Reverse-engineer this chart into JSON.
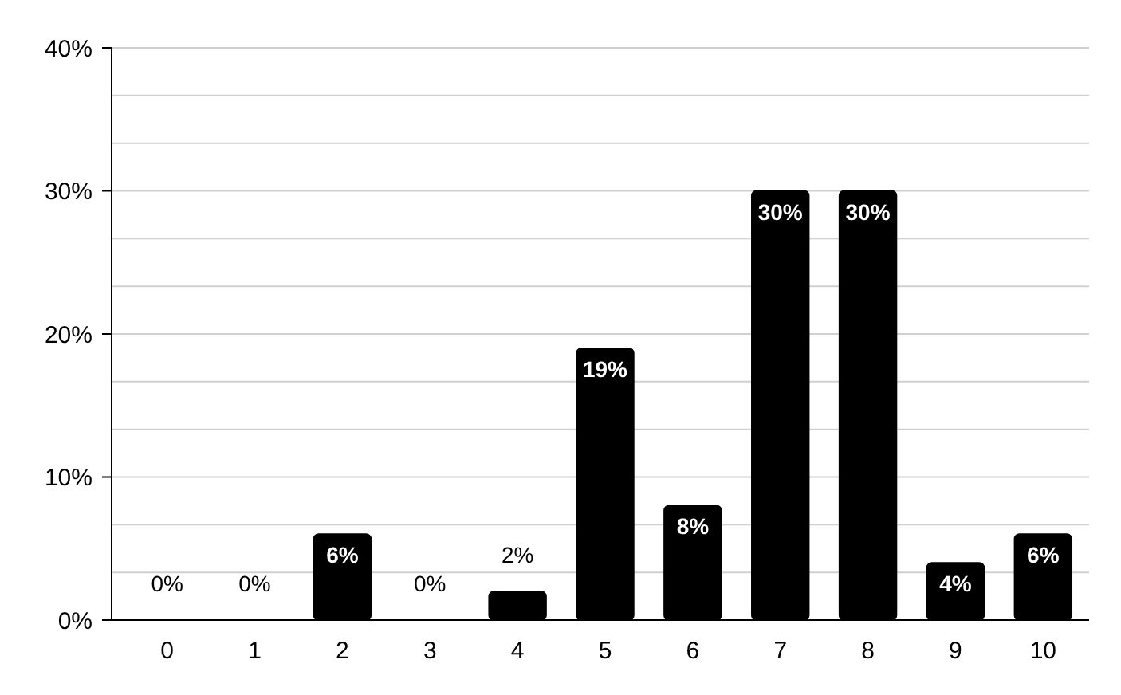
{
  "chart_data": {
    "type": "bar",
    "categories": [
      "0",
      "1",
      "2",
      "3",
      "4",
      "5",
      "6",
      "7",
      "8",
      "9",
      "10"
    ],
    "values": [
      0,
      0,
      6,
      0,
      2,
      19,
      8,
      30,
      30,
      4,
      6
    ],
    "value_labels": [
      "0%",
      "0%",
      "6%",
      "0%",
      "2%",
      "19%",
      "8%",
      "30%",
      "30%",
      "4%",
      "6%"
    ],
    "color": "#000000",
    "ylim": [
      0,
      40
    ],
    "yticks": [
      {
        "value": 0,
        "label": "0%"
      },
      {
        "value": 3.33,
        "label": null
      },
      {
        "value": 6.67,
        "label": null
      },
      {
        "value": 10,
        "label": "10%"
      },
      {
        "value": 13.33,
        "label": null
      },
      {
        "value": 16.67,
        "label": null
      },
      {
        "value": 20,
        "label": "20%"
      },
      {
        "value": 23.33,
        "label": null
      },
      {
        "value": 26.67,
        "label": null
      },
      {
        "value": 30,
        "label": "30%"
      },
      {
        "value": 33.33,
        "label": null
      },
      {
        "value": 36.67,
        "label": null
      },
      {
        "value": 40,
        "label": "40%"
      }
    ],
    "grid": "y"
  }
}
